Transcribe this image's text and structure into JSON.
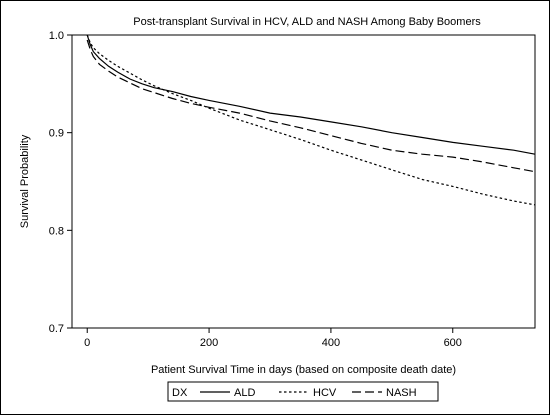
{
  "chart_data": {
    "type": "line",
    "title": "Post-transplant Survival in HCV, ALD and NASH Among Baby Boomers",
    "xlabel": "Patient Survival Time in days (based on composite death date)",
    "ylabel": "Survival Probability",
    "xlim": [
      -25,
      735
    ],
    "ylim": [
      0.7,
      1.0
    ],
    "x_ticks": [
      0,
      200,
      400,
      600
    ],
    "y_ticks": [
      0.7,
      0.8,
      0.9,
      1.0
    ],
    "y_tick_labels": [
      "0.7",
      "0.8",
      "0.9",
      "1.0"
    ],
    "grid": false,
    "legend": {
      "placement": "bottom",
      "title": "DX",
      "entries": [
        "ALD",
        "HCV",
        "NASH"
      ]
    },
    "series": [
      {
        "name": "ALD",
        "dash": "solid",
        "x": [
          0,
          5,
          10,
          20,
          35,
          50,
          70,
          90,
          110,
          140,
          170,
          200,
          250,
          300,
          350,
          400,
          450,
          500,
          550,
          600,
          650,
          700,
          735
        ],
        "y": [
          1.0,
          0.99,
          0.983,
          0.976,
          0.968,
          0.962,
          0.955,
          0.95,
          0.946,
          0.942,
          0.937,
          0.933,
          0.927,
          0.92,
          0.916,
          0.911,
          0.906,
          0.9,
          0.895,
          0.89,
          0.886,
          0.882,
          0.878
        ]
      },
      {
        "name": "HCV",
        "dash": "dotted",
        "x": [
          0,
          5,
          10,
          20,
          35,
          50,
          70,
          90,
          110,
          140,
          170,
          200,
          250,
          300,
          350,
          400,
          450,
          500,
          550,
          600,
          650,
          700,
          735
        ],
        "y": [
          1.0,
          0.992,
          0.987,
          0.981,
          0.974,
          0.968,
          0.961,
          0.954,
          0.948,
          0.94,
          0.933,
          0.925,
          0.913,
          0.903,
          0.893,
          0.882,
          0.872,
          0.862,
          0.852,
          0.845,
          0.837,
          0.83,
          0.826
        ]
      },
      {
        "name": "NASH",
        "dash": "long-dash",
        "x": [
          0,
          5,
          10,
          20,
          35,
          50,
          70,
          90,
          110,
          140,
          170,
          200,
          250,
          300,
          350,
          400,
          450,
          500,
          550,
          600,
          650,
          700,
          735
        ],
        "y": [
          0.995,
          0.985,
          0.978,
          0.97,
          0.963,
          0.957,
          0.951,
          0.945,
          0.941,
          0.935,
          0.93,
          0.926,
          0.92,
          0.912,
          0.905,
          0.897,
          0.889,
          0.882,
          0.878,
          0.875,
          0.87,
          0.864,
          0.86
        ]
      }
    ]
  }
}
